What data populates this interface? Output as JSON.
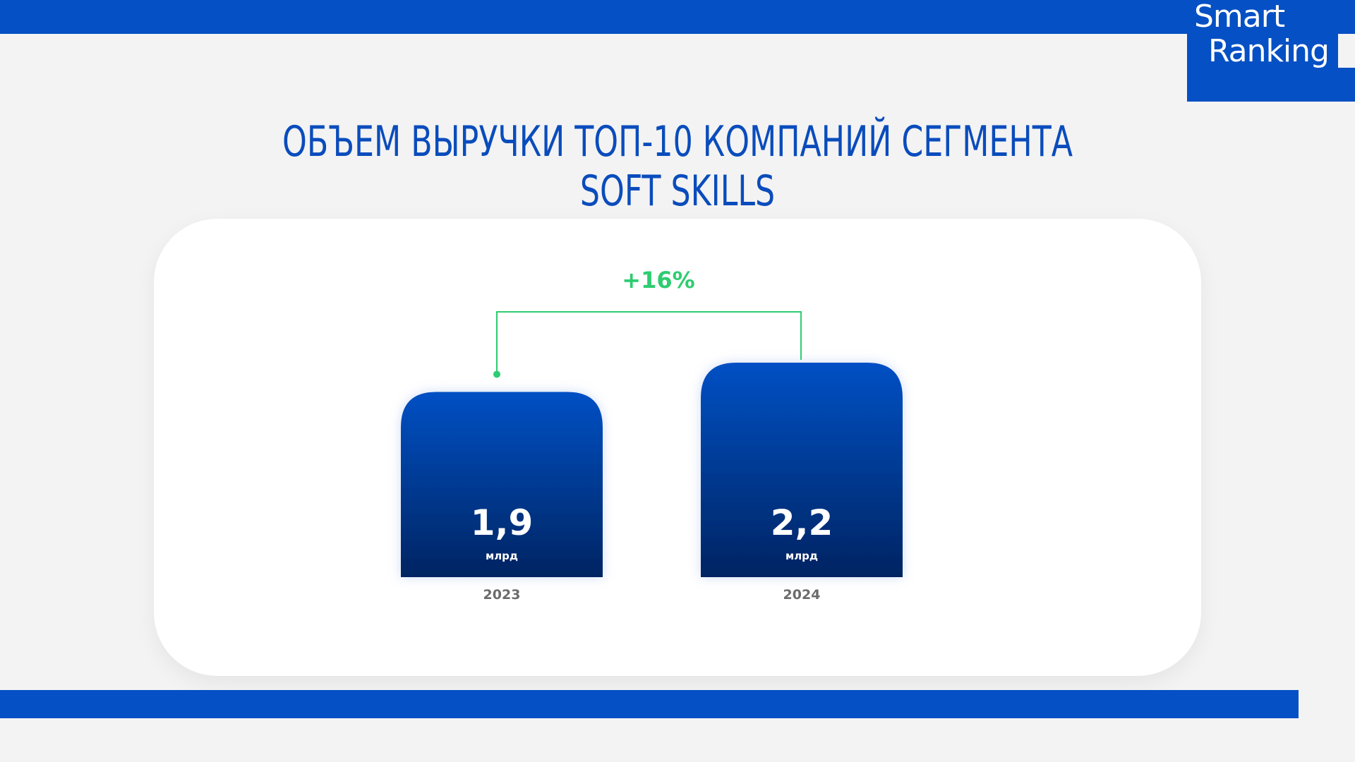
{
  "logo": {
    "line1": "Smart",
    "line2": "Ranking"
  },
  "title": "ОБЪЕМ ВЫРУЧКИ ТОП-10 КОМПАНИЙ СЕГМЕНТА SOFT SKILLS",
  "colors": {
    "brand": "#0550c4",
    "bar_top": "#0550c4",
    "bar_bottom": "#002462",
    "growth": "#2ecc71"
  },
  "chart_data": {
    "type": "bar",
    "categories": [
      "2023",
      "2024"
    ],
    "values": [
      1.9,
      2.2
    ],
    "value_labels": [
      "1,9",
      "2,2"
    ],
    "unit": "млрд",
    "annotation": "+16%",
    "title": "ОБЪЕМ ВЫРУЧКИ ТОП-10 КОМПАНИЙ СЕГМЕНТА SOFT SKILLS",
    "ylim": [
      0,
      2.2
    ]
  }
}
